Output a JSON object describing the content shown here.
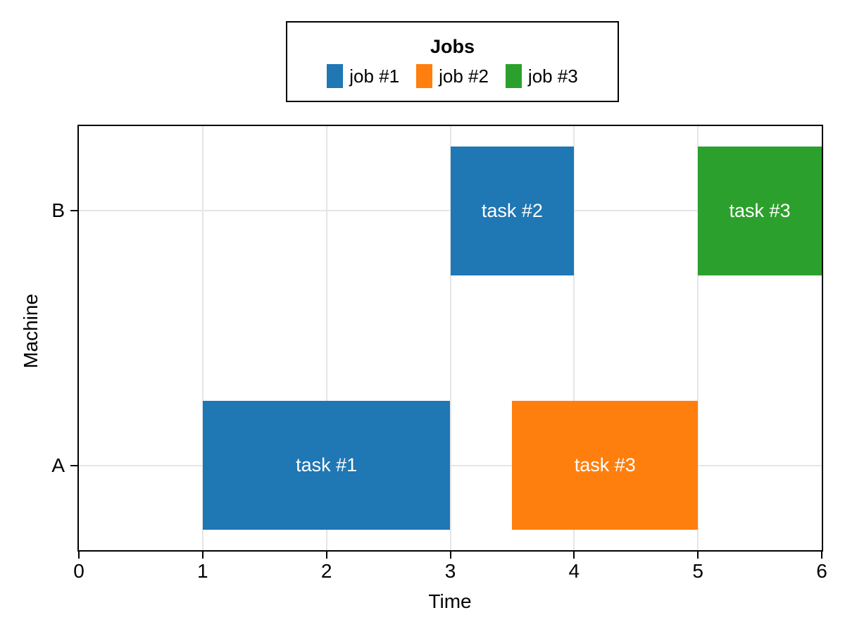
{
  "chart_data": {
    "type": "gantt",
    "xlabel": "Time",
    "ylabel": "Machine",
    "xlim": [
      0,
      6
    ],
    "xticks": [
      "0",
      "1",
      "2",
      "3",
      "4",
      "5",
      "6"
    ],
    "machines": [
      "A",
      "B"
    ],
    "grid": true,
    "legend": {
      "title": "Jobs",
      "position": "top-center",
      "entries": [
        {
          "label": "job #1",
          "color": "#1f77b4"
        },
        {
          "label": "job #2",
          "color": "#ff7f0e"
        },
        {
          "label": "job #3",
          "color": "#2ca02c"
        }
      ]
    },
    "tasks": [
      {
        "label": "task #1",
        "job": "job #1",
        "machine": "A",
        "start": 1,
        "end": 3,
        "color": "#1f77b4"
      },
      {
        "label": "task #3",
        "job": "job #2",
        "machine": "A",
        "start": 3.5,
        "end": 5,
        "color": "#ff7f0e"
      },
      {
        "label": "task #2",
        "job": "job #1",
        "machine": "B",
        "start": 3,
        "end": 4,
        "color": "#1f77b4"
      },
      {
        "label": "task #3",
        "job": "job #3",
        "machine": "B",
        "start": 5,
        "end": 6,
        "color": "#2ca02c"
      }
    ],
    "colors": {
      "axis": "#000000",
      "grid": "#e5e5e5",
      "bar_text": "#ffffff",
      "background": "#ffffff"
    }
  }
}
